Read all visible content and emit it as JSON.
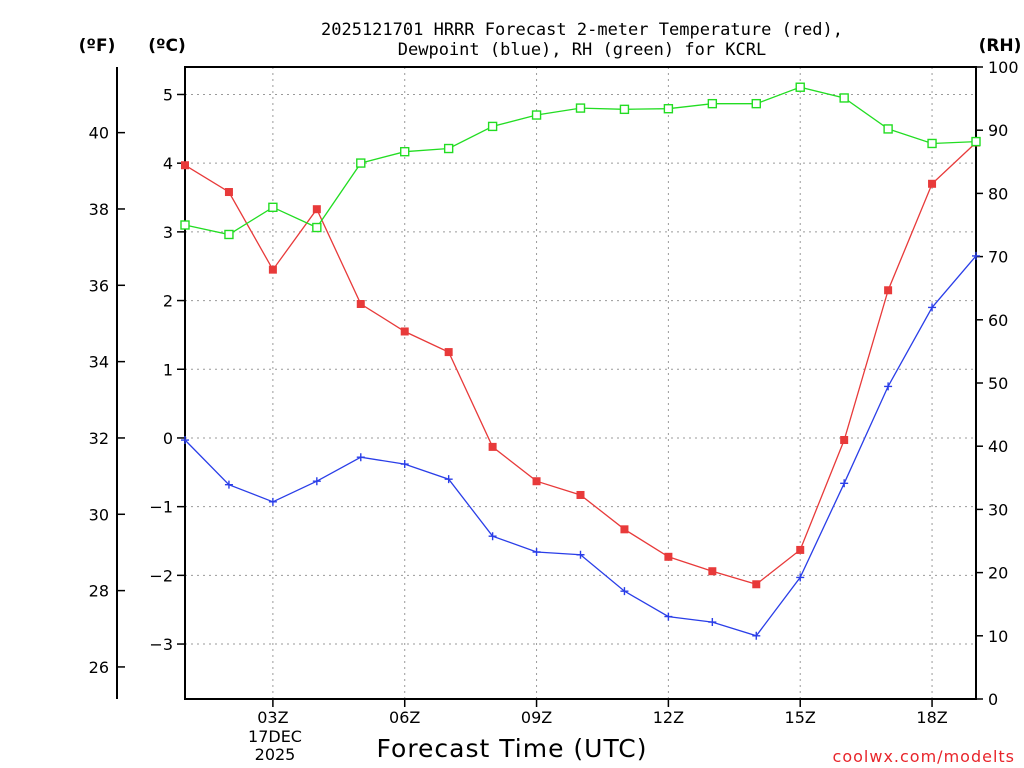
{
  "chart_data": {
    "type": "line",
    "title_line1": "2025121701 HRRR Forecast 2-meter Temperature (red),",
    "title_line2": "Dewpoint (blue), RH (green) for KCRL",
    "unit_f": "(ºF)",
    "unit_c": "(ºC)",
    "unit_rh": "(RH)",
    "xlabel": "Forecast Time (UTC)",
    "credit": "coolwx.com/modelts",
    "date_label_1": "17DEC",
    "date_label_2": "2025",
    "x_hours": [
      1,
      2,
      3,
      4,
      5,
      6,
      7,
      8,
      9,
      10,
      11,
      12,
      13,
      14,
      15,
      16,
      17,
      18,
      19
    ],
    "xlim": [
      1,
      19
    ],
    "x_ticks": [
      {
        "hour": 3,
        "label": "03Z"
      },
      {
        "hour": 6,
        "label": "06Z"
      },
      {
        "hour": 9,
        "label": "09Z"
      },
      {
        "hour": 12,
        "label": "12Z"
      },
      {
        "hour": 15,
        "label": "15Z"
      },
      {
        "hour": 18,
        "label": "18Z"
      }
    ],
    "ylim_c": [
      -3.8,
      5.4
    ],
    "y_ticks_c": [
      "5",
      "4",
      "3",
      "2",
      "1",
      "0",
      "−1",
      "−2",
      "−3"
    ],
    "y_ticks_c_values": [
      5,
      4,
      3,
      2,
      1,
      0,
      -1,
      -2,
      -3
    ],
    "y_ticks_f": [
      "40",
      "38",
      "36",
      "34",
      "32",
      "30",
      "28",
      "26"
    ],
    "y_ticks_f_values": [
      40,
      38,
      36,
      34,
      32,
      30,
      28,
      26
    ],
    "ylim_rh": [
      0,
      100
    ],
    "y_ticks_rh": [
      "100",
      "90",
      "80",
      "70",
      "60",
      "50",
      "40",
      "30",
      "20",
      "10",
      "0"
    ],
    "y_ticks_rh_values": [
      100,
      90,
      80,
      70,
      60,
      50,
      40,
      30,
      20,
      10,
      0
    ],
    "series": [
      {
        "name": "Temperature",
        "axis": "c",
        "color": "#e83a3a",
        "marker": "filled-square",
        "values": [
          3.97,
          3.58,
          2.45,
          3.33,
          1.95,
          1.55,
          1.25,
          -0.13,
          -0.63,
          -0.83,
          -1.33,
          -1.73,
          -1.94,
          -2.13,
          -1.63,
          -0.03,
          2.15,
          3.7,
          4.3
        ]
      },
      {
        "name": "Dewpoint",
        "axis": "c",
        "color": "#2a3ee8",
        "marker": "plus",
        "values": [
          -0.03,
          -0.68,
          -0.93,
          -0.63,
          -0.28,
          -0.38,
          -0.6,
          -1.43,
          -1.66,
          -1.7,
          -2.23,
          -2.6,
          -2.68,
          -2.88,
          -2.03,
          -0.66,
          0.75,
          1.9,
          2.65
        ]
      },
      {
        "name": "RH",
        "axis": "rh",
        "color": "#22dd22",
        "marker": "open-square",
        "values": [
          75.0,
          73.5,
          77.8,
          74.6,
          84.8,
          86.6,
          87.1,
          90.6,
          92.4,
          93.5,
          93.3,
          93.4,
          94.2,
          94.2,
          96.8,
          95.1,
          90.2,
          87.9,
          88.2
        ]
      }
    ]
  }
}
